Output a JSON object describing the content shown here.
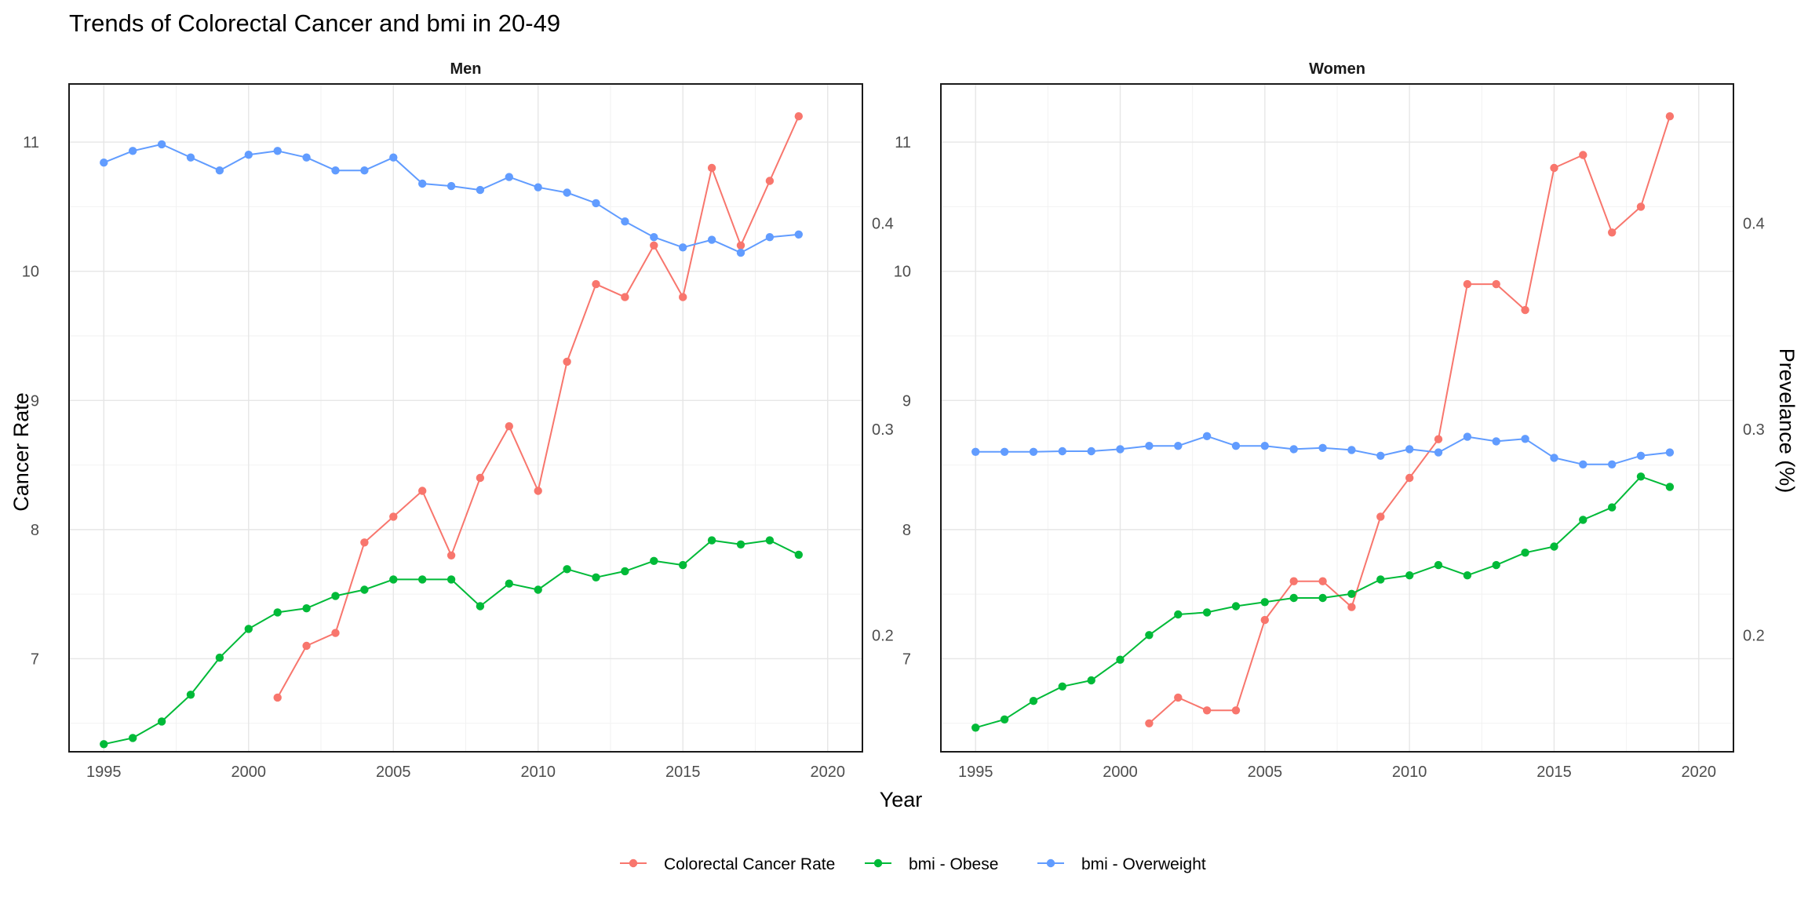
{
  "chart_data": {
    "type": "line",
    "title": "Trends of Colorectal Cancer and bmi in 20-49",
    "xlabel": "Year",
    "ylabel_left": "Cancer Rate",
    "ylabel_right": "Prevelance (%)",
    "xlim": [
      1993.8,
      2021.2
    ],
    "ylim_left": [
      6.28,
      11.45
    ],
    "ylim_right": [
      0.1433,
      0.4677
    ],
    "x_ticks": [
      "1995",
      "2000",
      "2005",
      "2010",
      "2015",
      "2020"
    ],
    "y_left_ticks": [
      "7",
      "8",
      "9",
      "10",
      "11"
    ],
    "y_right_ticks": [
      "0.2",
      "0.3",
      "0.4"
    ],
    "grid": true,
    "legend_position": "bottom",
    "legend": [
      "Colorectal Cancer Rate",
      "bmi - Obese",
      "bmi - Overweight"
    ],
    "colors": {
      "Colorectal Cancer Rate": "#F8766D",
      "bmi - Obese": "#00BA38",
      "bmi - Overweight": "#619CFF"
    },
    "panels": [
      {
        "strip": "Men",
        "series": [
          {
            "name": "Colorectal Cancer Rate",
            "axis": "left",
            "x": [
              2001,
              2002,
              2003,
              2004,
              2005,
              2006,
              2007,
              2008,
              2009,
              2010,
              2011,
              2012,
              2013,
              2014,
              2015,
              2016,
              2017,
              2018,
              2019
            ],
            "values": [
              6.7,
              7.1,
              7.2,
              7.9,
              8.1,
              8.3,
              7.8,
              8.4,
              8.8,
              8.3,
              9.3,
              9.9,
              9.8,
              10.2,
              9.8,
              10.8,
              10.2,
              10.7,
              11.2
            ]
          },
          {
            "name": "bmi - Obese",
            "axis": "right",
            "x": [
              1995,
              1996,
              1997,
              1998,
              1999,
              2000,
              2001,
              2002,
              2003,
              2004,
              2005,
              2006,
              2007,
              2008,
              2009,
              2010,
              2011,
              2012,
              2013,
              2014,
              2015,
              2016,
              2017,
              2018,
              2019
            ],
            "values": [
              0.147,
              0.15,
              0.158,
              0.171,
              0.189,
              0.203,
              0.211,
              0.213,
              0.219,
              0.222,
              0.227,
              0.227,
              0.227,
              0.214,
              0.225,
              0.222,
              0.232,
              0.228,
              0.231,
              0.236,
              0.234,
              0.246,
              0.244,
              0.246,
              0.239
            ]
          },
          {
            "name": "bmi - Overweight",
            "axis": "right",
            "x": [
              1995,
              1996,
              1997,
              1998,
              1999,
              2000,
              2001,
              2002,
              2003,
              2004,
              2005,
              2006,
              2007,
              2008,
              2009,
              2010,
              2011,
              2012,
              2013,
              2014,
              2015,
              2016,
              2017,
              2018,
              2019
            ],
            "values": [
              0.4295,
              0.4352,
              0.4384,
              0.432,
              0.4257,
              0.4333,
              0.4352,
              0.432,
              0.4257,
              0.4257,
              0.432,
              0.4193,
              0.4181,
              0.4162,
              0.4225,
              0.4175,
              0.4149,
              0.4098,
              0.4009,
              0.3933,
              0.3883,
              0.392,
              0.3857,
              0.3933,
              0.3946
            ]
          }
        ]
      },
      {
        "strip": "Women",
        "series": [
          {
            "name": "Colorectal Cancer Rate",
            "axis": "left",
            "x": [
              2001,
              2002,
              2003,
              2004,
              2005,
              2006,
              2007,
              2008,
              2009,
              2010,
              2011,
              2012,
              2013,
              2014,
              2015,
              2016,
              2017,
              2018,
              2019
            ],
            "values": [
              6.5,
              6.7,
              6.6,
              6.6,
              7.3,
              7.6,
              7.6,
              7.4,
              8.1,
              8.4,
              8.7,
              9.9,
              9.9,
              9.7,
              10.8,
              10.9,
              10.3,
              10.5,
              11.2
            ]
          },
          {
            "name": "bmi - Obese",
            "axis": "right",
            "x": [
              1995,
              1996,
              1997,
              1998,
              1999,
              2000,
              2001,
              2002,
              2003,
              2004,
              2005,
              2006,
              2007,
              2008,
              2009,
              2010,
              2011,
              2012,
              2013,
              2014,
              2015,
              2016,
              2017,
              2018,
              2019
            ],
            "values": [
              0.155,
              0.159,
              0.168,
              0.175,
              0.178,
              0.188,
              0.2,
              0.21,
              0.211,
              0.214,
              0.216,
              0.218,
              0.218,
              0.22,
              0.227,
              0.229,
              0.234,
              0.229,
              0.234,
              0.24,
              0.243,
              0.256,
              0.262,
              0.277,
              0.272
            ]
          },
          {
            "name": "bmi - Overweight",
            "axis": "right",
            "x": [
              1995,
              1996,
              1997,
              1998,
              1999,
              2000,
              2001,
              2002,
              2003,
              2004,
              2005,
              2006,
              2007,
              2008,
              2009,
              2010,
              2011,
              2012,
              2013,
              2014,
              2015,
              2016,
              2017,
              2018,
              2019
            ],
            "values": [
              0.289,
              0.289,
              0.289,
              0.2893,
              0.2893,
              0.2903,
              0.2919,
              0.2919,
              0.2966,
              0.2919,
              0.2919,
              0.2903,
              0.2909,
              0.2899,
              0.2871,
              0.2903,
              0.2887,
              0.2963,
              0.2941,
              0.2953,
              0.2861,
              0.2829,
              0.2829,
              0.2871,
              0.2887
            ]
          }
        ]
      }
    ]
  }
}
